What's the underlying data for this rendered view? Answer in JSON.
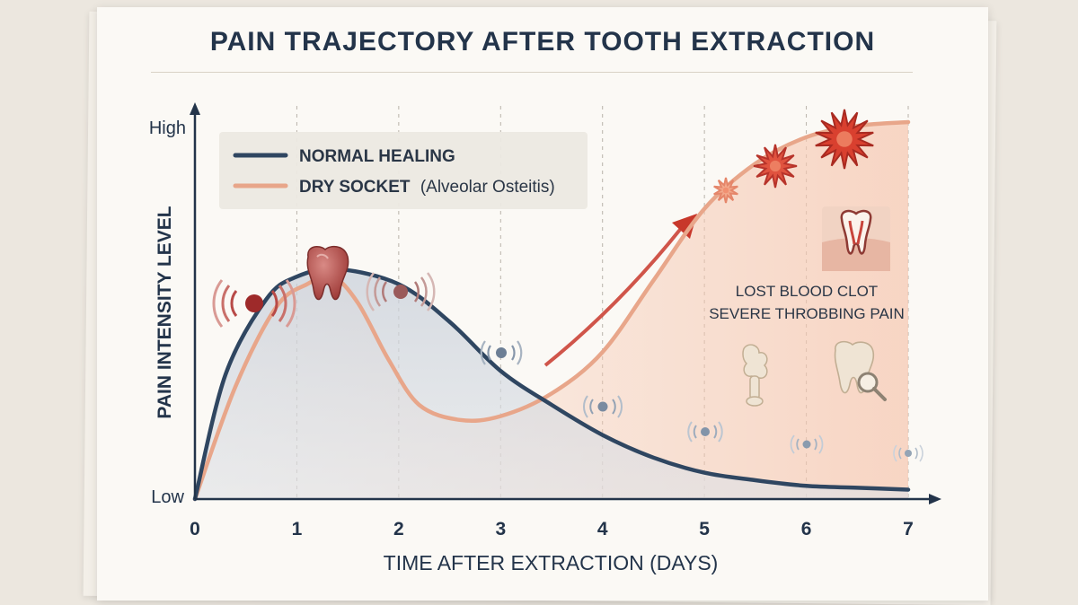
{
  "chart_data": {
    "type": "line",
    "title": "PAIN TRAJECTORY AFTER TOOTH EXTRACTION",
    "xlabel": "TIME AFTER EXTRACTION (DAYS)",
    "ylabel": "PAIN INTENSITY LEVEL",
    "y_tick_labels": {
      "top": "High",
      "bottom": "Low"
    },
    "x": [
      0,
      1,
      2,
      3,
      4,
      5,
      6,
      7
    ],
    "xlim": [
      0,
      7
    ],
    "ylim": [
      0,
      1
    ],
    "grid": "vertical dashed",
    "legend_position": "top-left",
    "series": [
      {
        "name": "NORMAL HEALING",
        "color": "#2f4661",
        "points": [
          [
            0,
            0
          ],
          [
            0.3,
            0.33
          ],
          [
            0.7,
            0.53
          ],
          [
            1.0,
            0.59
          ],
          [
            1.4,
            0.61
          ],
          [
            2.0,
            0.57
          ],
          [
            2.5,
            0.47
          ],
          [
            3.0,
            0.34
          ],
          [
            3.5,
            0.25
          ],
          [
            4.0,
            0.17
          ],
          [
            4.5,
            0.11
          ],
          [
            5.0,
            0.07
          ],
          [
            5.5,
            0.05
          ],
          [
            6.0,
            0.035
          ],
          [
            6.5,
            0.03
          ],
          [
            7.0,
            0.025
          ]
        ]
      },
      {
        "name": "DRY SOCKET",
        "name_suffix": "(Alveolar Osteitis)",
        "color": "#e8a68a",
        "points": [
          [
            0,
            0
          ],
          [
            0.4,
            0.3
          ],
          [
            0.8,
            0.51
          ],
          [
            1.1,
            0.57
          ],
          [
            1.35,
            0.59
          ],
          [
            1.6,
            0.52
          ],
          [
            1.9,
            0.37
          ],
          [
            2.2,
            0.25
          ],
          [
            2.6,
            0.21
          ],
          [
            3.0,
            0.22
          ],
          [
            3.5,
            0.28
          ],
          [
            4.0,
            0.39
          ],
          [
            4.5,
            0.58
          ],
          [
            5.0,
            0.77
          ],
          [
            5.5,
            0.89
          ],
          [
            6.0,
            0.96
          ],
          [
            6.5,
            0.99
          ],
          [
            7.0,
            1.0
          ]
        ]
      }
    ],
    "annotations": [
      "LOST BLOOD CLOT",
      "SEVERE THROBBING PAIN"
    ]
  },
  "colors": {
    "axis": "#23344a",
    "normal": "#2f4661",
    "dry": "#e8a68a",
    "accent_red": "#c8382b",
    "grid": "#b9b3aa"
  },
  "icons": [
    "tooth-icon",
    "pain-wave-icon",
    "starburst-icon",
    "bone-joint-icon",
    "tooth-magnifier-icon"
  ]
}
